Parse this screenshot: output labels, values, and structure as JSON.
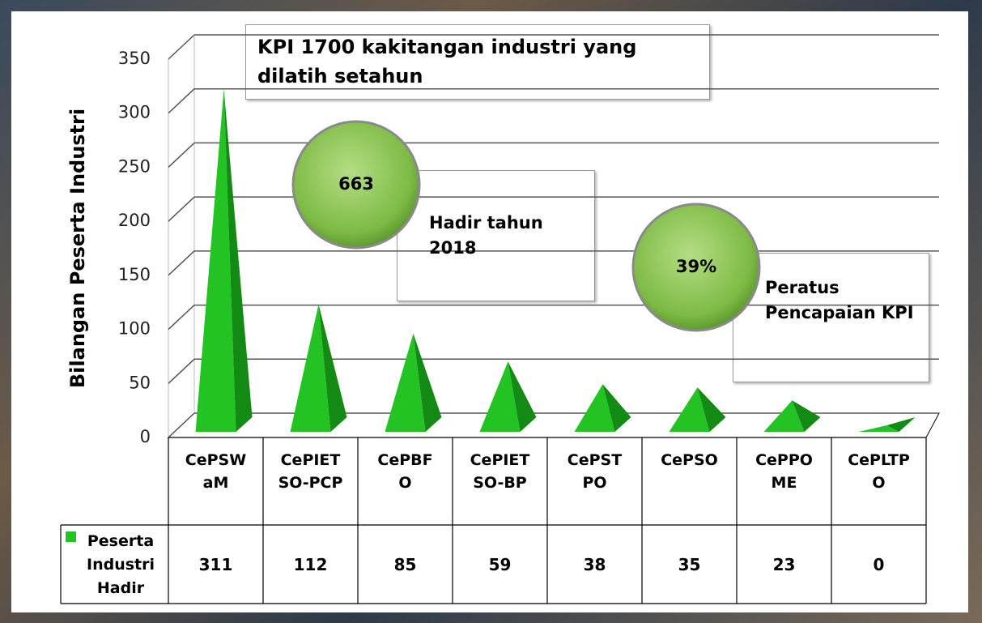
{
  "chart_data": {
    "type": "bar",
    "title": "KPI 1700 kakitangan industri yang dilatih setahun",
    "y_label": "Bilangan Peserta Industri",
    "categories": [
      "CePSWaM",
      "CePIETSO-PCP",
      "CePBFO",
      "CePIETSO-BP",
      "CePSTPO",
      "CePSO",
      "CePPOME",
      "CePLTPO"
    ],
    "series": [
      {
        "name": "Peserta Industri Hadir",
        "color": "#22c322",
        "values": [
          311,
          112,
          85,
          59,
          38,
          35,
          23,
          0
        ]
      }
    ],
    "ylim": [
      0,
      350
    ],
    "yticks": [
      0,
      50,
      100,
      150,
      200,
      250,
      300,
      350
    ],
    "grid": true,
    "callouts": [
      {
        "value": 663,
        "text": "Hadir tahun 2018"
      },
      {
        "value": 39,
        "value_label": "39%",
        "text": "Peratus Pencapaian KPI"
      }
    ]
  }
}
